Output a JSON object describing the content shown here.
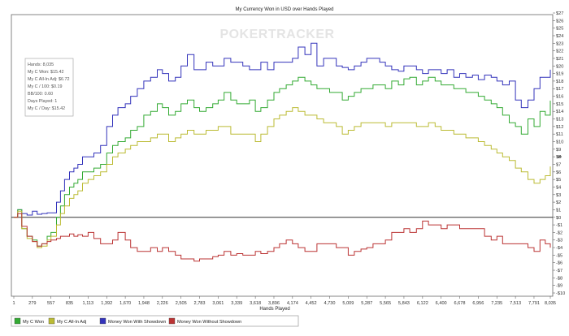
{
  "chart_data": {
    "type": "line",
    "title": "My Currency Won in USD over Hands Played",
    "watermark": "POKERTRACKER",
    "xlabel": "Hands Played",
    "ylabel": "$",
    "xlim": [
      1,
      8035
    ],
    "ylim": [
      -10,
      27
    ],
    "x_ticks": [
      1,
      279,
      557,
      835,
      1113,
      1392,
      1670,
      1948,
      2226,
      2505,
      2783,
      3061,
      3339,
      3618,
      3896,
      4174,
      4452,
      4730,
      5009,
      5287,
      5565,
      5843,
      6122,
      6400,
      6678,
      6956,
      7235,
      7513,
      7791,
      8035
    ],
    "x_tick_labels": [
      "1",
      "279",
      "557",
      "835",
      "1,113",
      "1,392",
      "1,670",
      "1,948",
      "2,226",
      "2,505",
      "2,783",
      "3,061",
      "3,339",
      "3,618",
      "3,896",
      "4,174",
      "4,452",
      "4,730",
      "5,009",
      "5,287",
      "5,565",
      "5,843",
      "6,122",
      "6,400",
      "6,678",
      "6,956",
      "7,235",
      "7,513",
      "7,791",
      "8,035"
    ],
    "y_ticks": [
      -10,
      -9,
      -8,
      -7,
      -6,
      -5,
      -4,
      -3,
      -2,
      -1,
      0,
      1,
      2,
      3,
      4,
      5,
      6,
      7,
      8,
      9,
      10,
      11,
      12,
      13,
      14,
      15,
      16,
      17,
      18,
      19,
      20,
      21,
      22,
      23,
      24,
      25,
      26,
      27
    ],
    "y_tick_labels": [
      "-$10",
      "-$9",
      "-$8",
      "-$7",
      "-$6",
      "-$5",
      "-$4",
      "-$3",
      "-$2",
      "-$1",
      "$0",
      "$1",
      "$2",
      "$3",
      "$4",
      "$5",
      "$6",
      "$7",
      "$8",
      "$9",
      "$10",
      "$11",
      "$12",
      "$13",
      "$14",
      "$15",
      "$16",
      "$17",
      "$18",
      "$19",
      "$20",
      "$21",
      "$22",
      "$23",
      "$24",
      "$25",
      "$26",
      "$27"
    ],
    "grid": false,
    "stats_box": [
      "Hands: 8,035",
      "My C Won: $15.42",
      "My C All-In Adj: $6.72",
      "My C / 100: $0.19",
      "BB/100: 0.60",
      "Days Played: 1",
      "My C / Day: $15.42"
    ],
    "legend_position": "bottom-left",
    "series": [
      {
        "name": "Money Won With Showdown",
        "color": "#3333bb",
        "x": [
          1,
          60,
          120,
          200,
          279,
          350,
          420,
          500,
          557,
          640,
          700,
          760,
          835,
          900,
          960,
          1030,
          1113,
          1200,
          1300,
          1392,
          1480,
          1560,
          1670,
          1750,
          1850,
          1948,
          2050,
          2150,
          2226,
          2320,
          2420,
          2505,
          2600,
          2700,
          2783,
          2880,
          2980,
          3061,
          3150,
          3250,
          3339,
          3430,
          3530,
          3618,
          3700,
          3800,
          3896,
          3980,
          4080,
          4174,
          4260,
          4360,
          4452,
          4540,
          4640,
          4730,
          4830,
          4920,
          5009,
          5100,
          5200,
          5287,
          5380,
          5480,
          5565,
          5660,
          5760,
          5843,
          5930,
          6030,
          6122,
          6210,
          6310,
          6400,
          6490,
          6590,
          6678,
          6770,
          6870,
          6956,
          7050,
          7150,
          7235,
          7320,
          7420,
          7513,
          7600,
          7700,
          7791,
          7880,
          7960,
          8035
        ],
        "y": [
          0,
          1,
          0.5,
          0.3,
          0.8,
          0.4,
          0.5,
          0.6,
          0.6,
          2,
          3.5,
          5,
          6,
          6.5,
          7,
          8,
          8,
          8.5,
          9.5,
          12,
          13.5,
          14.5,
          15,
          16,
          17,
          18,
          18.5,
          19.5,
          19,
          18,
          18.5,
          20,
          21.5,
          19.5,
          19.5,
          20.5,
          20,
          20,
          21,
          20.5,
          20.5,
          20,
          19.5,
          19.5,
          20.5,
          19.5,
          20.5,
          20.5,
          20.5,
          21,
          22.5,
          21.5,
          23,
          20,
          21,
          21,
          20,
          19.8,
          19.5,
          20,
          20.5,
          21,
          21,
          20.5,
          20,
          19.5,
          19.3,
          20,
          20,
          19.5,
          19,
          19.5,
          19.5,
          19,
          19.5,
          18.5,
          19,
          18.5,
          18.8,
          18.2,
          18.8,
          18.5,
          18,
          17.5,
          18,
          15.5,
          14.5,
          15.5,
          17,
          18.5,
          18.5,
          19.5
        ]
      },
      {
        "name": "My C Won",
        "color": "#33aa33",
        "x": [
          1,
          60,
          120,
          200,
          279,
          350,
          420,
          500,
          557,
          640,
          700,
          760,
          835,
          900,
          960,
          1030,
          1113,
          1200,
          1300,
          1392,
          1480,
          1560,
          1670,
          1750,
          1850,
          1948,
          2050,
          2150,
          2226,
          2320,
          2420,
          2505,
          2600,
          2700,
          2783,
          2880,
          2980,
          3061,
          3150,
          3250,
          3339,
          3430,
          3530,
          3618,
          3700,
          3800,
          3896,
          3980,
          4080,
          4174,
          4260,
          4360,
          4452,
          4540,
          4640,
          4730,
          4830,
          4920,
          5009,
          5100,
          5200,
          5287,
          5380,
          5480,
          5565,
          5660,
          5760,
          5843,
          5930,
          6030,
          6122,
          6210,
          6310,
          6400,
          6490,
          6590,
          6678,
          6770,
          6870,
          6956,
          7050,
          7150,
          7235,
          7320,
          7420,
          7513,
          7600,
          7700,
          7791,
          7880,
          7960,
          8035
        ],
        "y": [
          0,
          1,
          -1.5,
          -2.5,
          -3,
          -3.8,
          -3.5,
          -2.5,
          -2,
          0,
          1.5,
          3,
          4,
          4.5,
          5,
          6,
          6,
          6.5,
          7,
          8.5,
          9.5,
          10,
          10.5,
          11.5,
          12,
          13.5,
          14,
          15,
          14.5,
          13.5,
          14,
          15,
          15.5,
          14.5,
          14,
          14.5,
          15,
          15.5,
          16.5,
          15.5,
          15,
          15,
          15.5,
          14,
          14.5,
          15.5,
          16.5,
          17,
          17.5,
          18,
          18.5,
          18,
          17.5,
          17,
          17,
          16.5,
          16.5,
          15.5,
          16,
          16.5,
          17,
          17,
          17.5,
          17.5,
          17,
          18,
          17.5,
          18.3,
          18.5,
          17.5,
          18,
          18.5,
          18,
          17.5,
          17.5,
          17,
          17,
          16.5,
          16.5,
          16,
          15.5,
          15,
          14.5,
          13.5,
          12.5,
          12,
          11,
          13,
          12,
          14,
          13.5,
          15.42
        ]
      },
      {
        "name": "My C All-In Adj",
        "color": "#bbbb33",
        "x": [
          1,
          60,
          120,
          200,
          279,
          350,
          420,
          500,
          557,
          640,
          700,
          760,
          835,
          900,
          960,
          1030,
          1113,
          1200,
          1300,
          1392,
          1480,
          1560,
          1670,
          1750,
          1850,
          1948,
          2050,
          2150,
          2226,
          2320,
          2420,
          2505,
          2600,
          2700,
          2783,
          2880,
          2980,
          3061,
          3150,
          3250,
          3339,
          3430,
          3530,
          3618,
          3700,
          3800,
          3896,
          3980,
          4080,
          4174,
          4260,
          4360,
          4452,
          4540,
          4640,
          4730,
          4830,
          4920,
          5009,
          5100,
          5200,
          5287,
          5380,
          5480,
          5565,
          5660,
          5760,
          5843,
          5930,
          6030,
          6122,
          6210,
          6310,
          6400,
          6490,
          6590,
          6678,
          6770,
          6870,
          6956,
          7050,
          7150,
          7235,
          7320,
          7420,
          7513,
          7600,
          7700,
          7791,
          7880,
          7960,
          8035
        ],
        "y": [
          0,
          0.8,
          -1.5,
          -2.8,
          -3.2,
          -4,
          -3.8,
          -3,
          -2.5,
          -1,
          0.5,
          1.5,
          2.5,
          3,
          3.5,
          4.5,
          5,
          5.5,
          6,
          7,
          8,
          8.5,
          9,
          9.5,
          10,
          10,
          10.5,
          11,
          11,
          10,
          10.5,
          11,
          11.5,
          11,
          11,
          11.5,
          11.5,
          12,
          12,
          11,
          11,
          11,
          11,
          10,
          11,
          12,
          13,
          13.5,
          14,
          14.5,
          14,
          13.5,
          13.5,
          13,
          12.5,
          12.5,
          12,
          11,
          11.5,
          12,
          12.5,
          12.5,
          12.5,
          12.5,
          12,
          12.5,
          12.5,
          12.5,
          12.5,
          12,
          12,
          12.5,
          12,
          11.5,
          11.5,
          11,
          11,
          10.5,
          10.5,
          10,
          9.5,
          9,
          8.5,
          8,
          7.5,
          6.5,
          6,
          5,
          4.5,
          5,
          5.5,
          6.72
        ]
      },
      {
        "name": "Money Won Without Showdown",
        "color": "#bb3333",
        "x": [
          1,
          60,
          120,
          200,
          279,
          350,
          420,
          500,
          557,
          640,
          700,
          760,
          835,
          900,
          960,
          1030,
          1113,
          1200,
          1300,
          1392,
          1480,
          1560,
          1670,
          1750,
          1850,
          1948,
          2050,
          2150,
          2226,
          2320,
          2420,
          2505,
          2600,
          2700,
          2783,
          2880,
          2980,
          3061,
          3150,
          3250,
          3339,
          3430,
          3530,
          3618,
          3700,
          3800,
          3896,
          3980,
          4080,
          4174,
          4260,
          4360,
          4452,
          4540,
          4640,
          4730,
          4830,
          4920,
          5009,
          5100,
          5200,
          5287,
          5380,
          5480,
          5565,
          5660,
          5760,
          5843,
          5930,
          6030,
          6122,
          6210,
          6310,
          6400,
          6490,
          6590,
          6678,
          6770,
          6870,
          6956,
          7050,
          7150,
          7235,
          7320,
          7420,
          7513,
          7600,
          7700,
          7791,
          7880,
          7960,
          8035
        ],
        "y": [
          0,
          0.5,
          -1.2,
          -2.5,
          -3.2,
          -3.8,
          -3.5,
          -3.2,
          -3,
          -2.8,
          -2.5,
          -2.5,
          -2.2,
          -2.5,
          -2.3,
          -2.5,
          -2,
          -2.8,
          -3.5,
          -3.5,
          -3,
          -2,
          -3,
          -4,
          -4.5,
          -4.5,
          -4,
          -4.5,
          -4,
          -4.5,
          -5,
          -5.5,
          -5.5,
          -5.8,
          -5.5,
          -5.5,
          -5.2,
          -5,
          -4.5,
          -5,
          -4.8,
          -5,
          -5,
          -4.5,
          -4.8,
          -4.5,
          -4,
          -3.5,
          -3,
          -3.5,
          -4,
          -4.5,
          -4.5,
          -3.5,
          -3.5,
          -3.5,
          -4,
          -4,
          -5,
          -4.5,
          -4.2,
          -4,
          -3.5,
          -3.5,
          -3,
          -2,
          -2,
          -1.5,
          -2,
          -1.5,
          -0.5,
          -1,
          -1,
          -1.5,
          -1,
          -1,
          -1.5,
          -1.5,
          -1.5,
          -1.5,
          -2.5,
          -3,
          -2.5,
          -3.5,
          -3.5,
          -3.5,
          -3.5,
          -4,
          -4.5,
          -3,
          -3.5,
          -4
        ]
      }
    ]
  }
}
